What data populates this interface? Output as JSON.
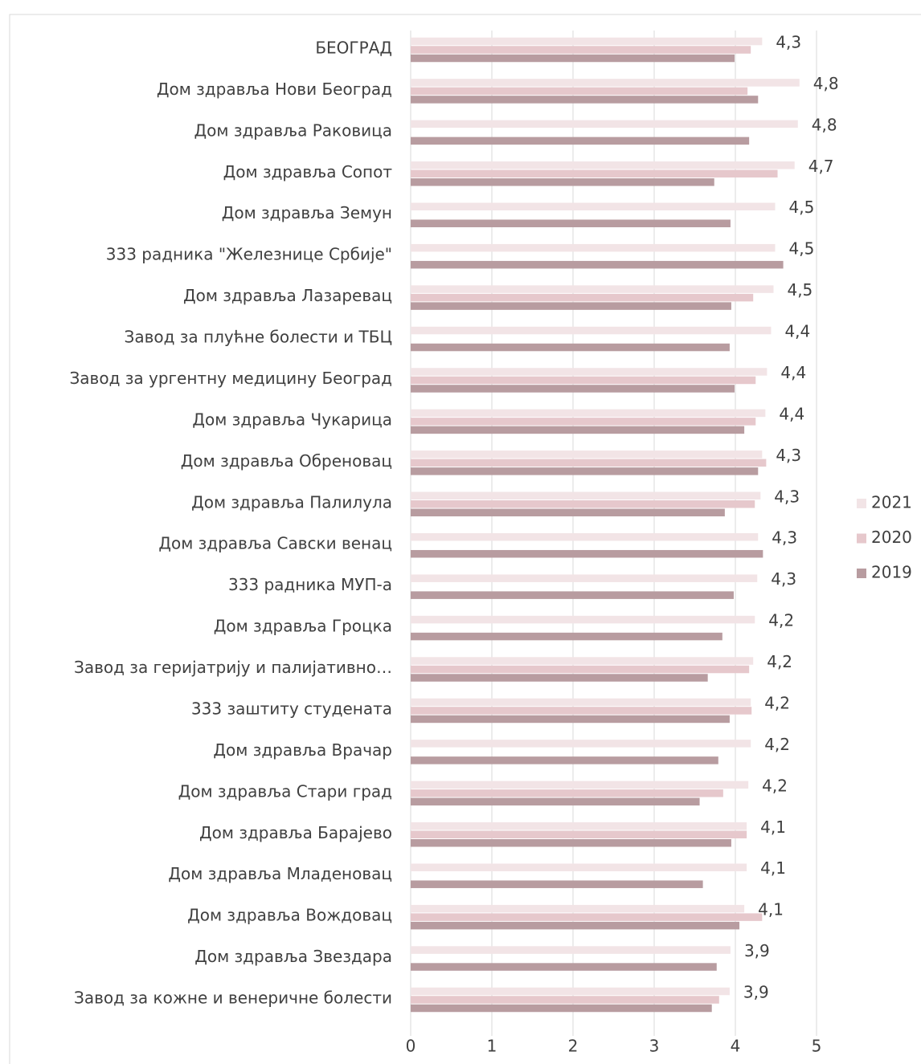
{
  "chart_data": {
    "type": "bar",
    "orientation": "horizontal",
    "categories": [
      "БЕОГРАД",
      "Дом здравља Нови Београд",
      "Дом здравља Раковица",
      "Дом здравља Сопот",
      "Дом здравља Земун",
      "333 радника \"Железнице Србије\"",
      "Дом здравља Лазаревац",
      "Завод за плућне болести и ТБЦ",
      "Завод за ургентну медицину Београд",
      "Дом здравља Чукарица",
      "Дом здравља Обреновац",
      "Дом здравља Палилула",
      "Дом здравља Савски венац",
      "333 радника МУП-а",
      "Дом здравља Гроцка",
      "Завод за геријатрију и палијативно…",
      "333 заштиту студената",
      "Дом здравља Врачар",
      "Дом здравља Стари град",
      "Дом здравља Барајево",
      "Дом здравља Младеновац",
      "Дом здравља Вождовац",
      "Дом здравља Звездара",
      "Завод за кожне и венеричне болести"
    ],
    "series": [
      {
        "name": "2021",
        "color": "#f2e4e6",
        "values": [
          4.33,
          4.79,
          4.77,
          4.73,
          4.49,
          4.49,
          4.47,
          4.44,
          4.39,
          4.37,
          4.33,
          4.31,
          4.28,
          4.27,
          4.24,
          4.22,
          4.19,
          4.19,
          4.16,
          4.14,
          4.14,
          4.11,
          3.94,
          3.93
        ],
        "value_labels": [
          "4,3",
          "4,8",
          "4,8",
          "4,7",
          "4,5",
          "4,5",
          "4,5",
          "4,4",
          "4,4",
          "4,4",
          "4,3",
          "4,3",
          "4,3",
          "4,3",
          "4,2",
          "4,2",
          "4,2",
          "4,2",
          "4,2",
          "4,1",
          "4,1",
          "4,1",
          "3,9",
          "3,9"
        ]
      },
      {
        "name": "2020",
        "color": "#e6c8cc",
        "values": [
          4.19,
          4.15,
          null,
          4.52,
          null,
          null,
          4.22,
          null,
          4.25,
          4.25,
          4.38,
          4.24,
          null,
          null,
          null,
          4.17,
          4.2,
          null,
          3.85,
          4.14,
          null,
          4.33,
          null,
          3.8
        ]
      },
      {
        "name": "2019",
        "color": "#b89ca0",
        "values": [
          3.99,
          4.28,
          4.17,
          3.74,
          3.94,
          4.59,
          3.95,
          3.93,
          3.99,
          4.11,
          4.28,
          3.87,
          4.34,
          3.98,
          3.84,
          3.66,
          3.93,
          3.79,
          3.56,
          3.95,
          3.6,
          4.05,
          3.77,
          3.71
        ]
      }
    ],
    "xlim": [
      0,
      5
    ],
    "xticks": [
      0,
      1,
      2,
      3,
      4,
      5
    ],
    "grid": true,
    "legend": "right"
  }
}
